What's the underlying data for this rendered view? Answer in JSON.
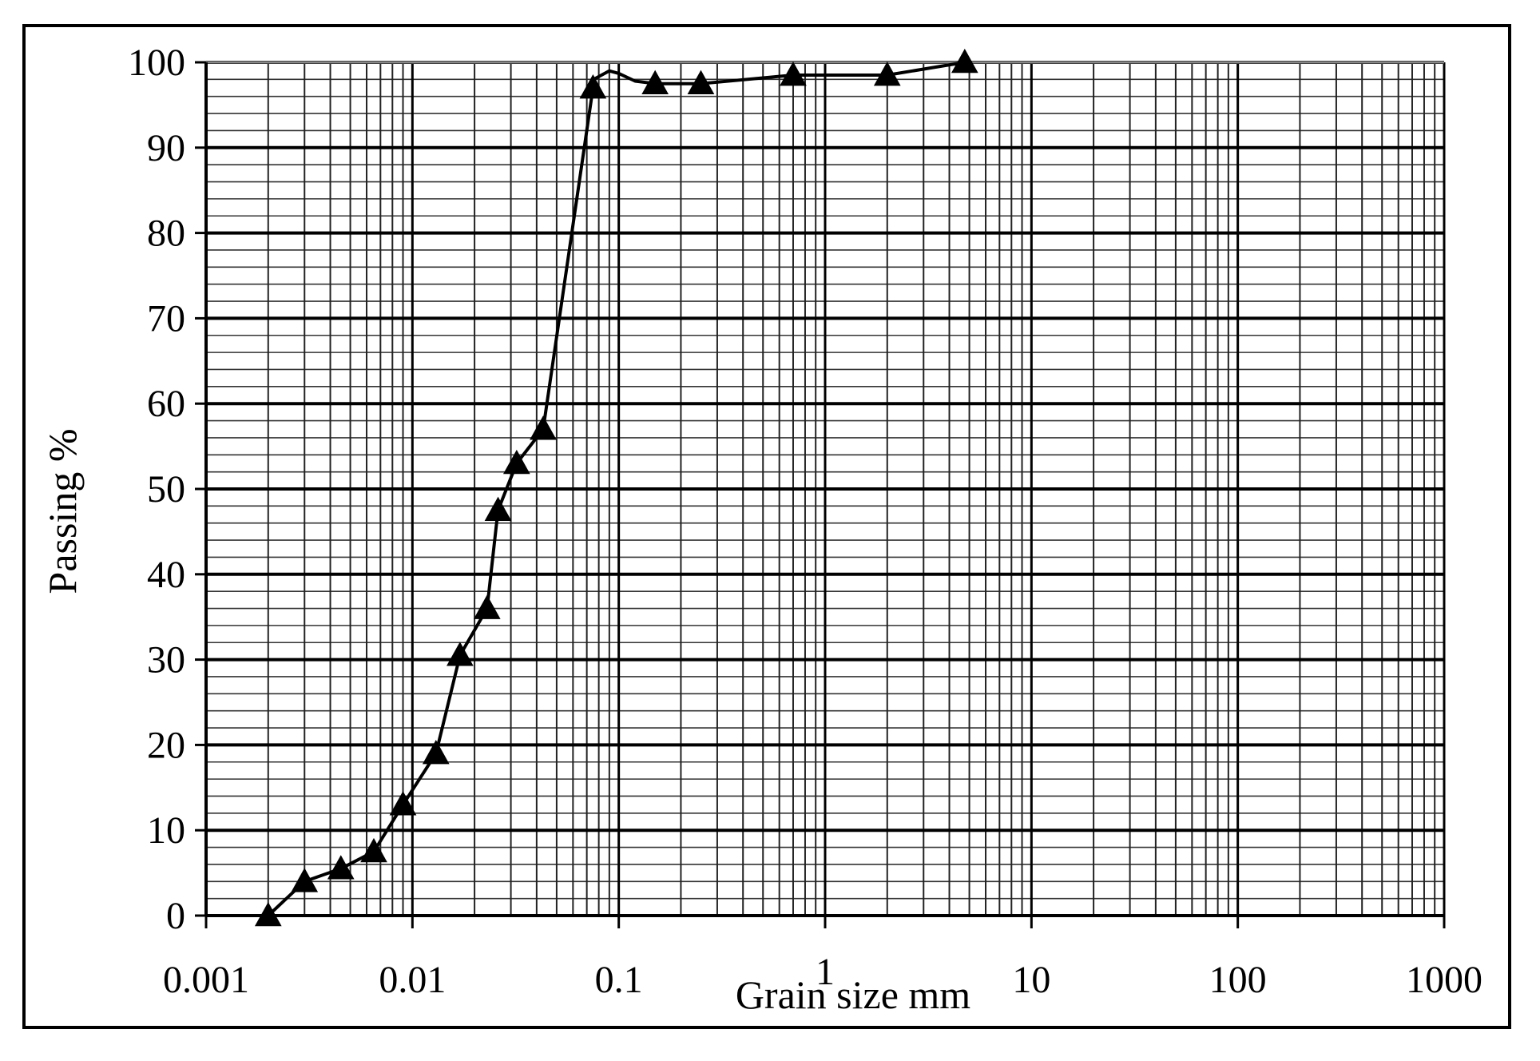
{
  "chart_data": {
    "type": "line",
    "xlabel": "Grain size mm",
    "ylabel": "Passing %",
    "x_scale": "log",
    "xlim": [
      0.001,
      1000
    ],
    "ylim": [
      0,
      100
    ],
    "x_tick_labels": [
      "0.001",
      "0.01",
      "0.1",
      "1",
      "10",
      "100",
      "1000"
    ],
    "y_tick_labels": [
      "0",
      "10",
      "20",
      "30",
      "40",
      "50",
      "60",
      "70",
      "80",
      "90",
      "100"
    ],
    "grid": true,
    "legend": "none",
    "series": [
      {
        "marker": "triangle",
        "color": "#000000",
        "x": [
          0.002,
          0.003,
          0.0045,
          0.0065,
          0.009,
          0.013,
          0.017,
          0.023,
          0.026,
          0.032,
          0.043,
          0.075,
          0.15,
          0.25,
          0.7,
          2.0,
          4.75
        ],
        "y": [
          0,
          4,
          5.5,
          7.5,
          13,
          19,
          30.5,
          36,
          47.5,
          53,
          57,
          97,
          97.5,
          97.5,
          98.5,
          98.5,
          100
        ],
        "curve_x": [
          0.0755,
          0.09,
          0.1,
          0.12
        ],
        "curve_y": [
          98,
          99,
          98.7,
          97.8
        ]
      }
    ]
  }
}
